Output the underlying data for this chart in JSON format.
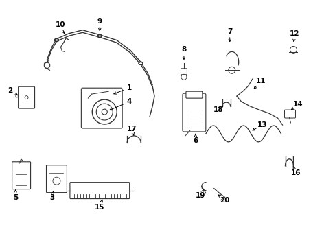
{
  "bg_color": "#ffffff",
  "line_color": "#333333",
  "fig_width": 4.89,
  "fig_height": 3.6,
  "dpi": 100,
  "label_fontsize": 7.5,
  "labels": {
    "9": [
      1.45,
      3.3,
      1.45,
      3.12
    ],
    "10": [
      0.88,
      3.25,
      0.95,
      3.08
    ],
    "2": [
      0.14,
      2.28,
      0.28,
      2.2
    ],
    "1": [
      1.88,
      2.32,
      1.62,
      2.22
    ],
    "4": [
      1.88,
      2.12,
      1.56,
      1.98
    ],
    "5": [
      0.22,
      0.72,
      0.22,
      0.84
    ],
    "3": [
      0.75,
      0.72,
      0.78,
      0.84
    ],
    "15": [
      1.45,
      0.58,
      1.5,
      0.72
    ],
    "17": [
      1.92,
      1.72,
      1.95,
      1.62
    ],
    "6": [
      2.85,
      1.55,
      2.85,
      1.68
    ],
    "8": [
      2.68,
      2.88,
      2.68,
      2.7
    ],
    "7": [
      3.35,
      3.15,
      3.35,
      2.96
    ],
    "11": [
      3.8,
      2.42,
      3.68,
      2.28
    ],
    "18": [
      3.18,
      2.0,
      3.28,
      2.08
    ],
    "12": [
      4.3,
      3.12,
      4.28,
      2.96
    ],
    "14": [
      4.35,
      2.08,
      4.22,
      1.98
    ],
    "13": [
      3.82,
      1.78,
      3.65,
      1.68
    ],
    "16": [
      4.32,
      1.08,
      4.26,
      1.2
    ],
    "19": [
      2.92,
      0.75,
      2.98,
      0.86
    ],
    "20": [
      3.28,
      0.68,
      3.15,
      0.78
    ]
  }
}
